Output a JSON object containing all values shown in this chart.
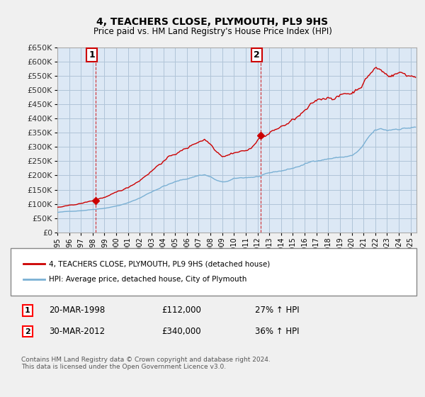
{
  "title": "4, TEACHERS CLOSE, PLYMOUTH, PL9 9HS",
  "subtitle": "Price paid vs. HM Land Registry's House Price Index (HPI)",
  "legend_entry1": "4, TEACHERS CLOSE, PLYMOUTH, PL9 9HS (detached house)",
  "legend_entry2": "HPI: Average price, detached house, City of Plymouth",
  "annotation1_label": "1",
  "annotation1_date": "20-MAR-1998",
  "annotation1_price": "£112,000",
  "annotation1_hpi": "27% ↑ HPI",
  "annotation2_label": "2",
  "annotation2_date": "30-MAR-2012",
  "annotation2_price": "£340,000",
  "annotation2_hpi": "36% ↑ HPI",
  "footer": "Contains HM Land Registry data © Crown copyright and database right 2024.\nThis data is licensed under the Open Government Licence v3.0.",
  "ylim": [
    0,
    650000
  ],
  "yticks": [
    0,
    50000,
    100000,
    150000,
    200000,
    250000,
    300000,
    350000,
    400000,
    450000,
    500000,
    550000,
    600000,
    650000
  ],
  "xlim_start": 1995.0,
  "xlim_end": 2025.5,
  "line_color_red": "#cc0000",
  "line_color_blue": "#7ab0d4",
  "background_color": "#f0f0f0",
  "plot_bg_color": "#dce8f5",
  "grid_color": "#b0c4d8",
  "point1_x": 1998.22,
  "point1_y": 112000,
  "point2_x": 2012.25,
  "point2_y": 340000
}
